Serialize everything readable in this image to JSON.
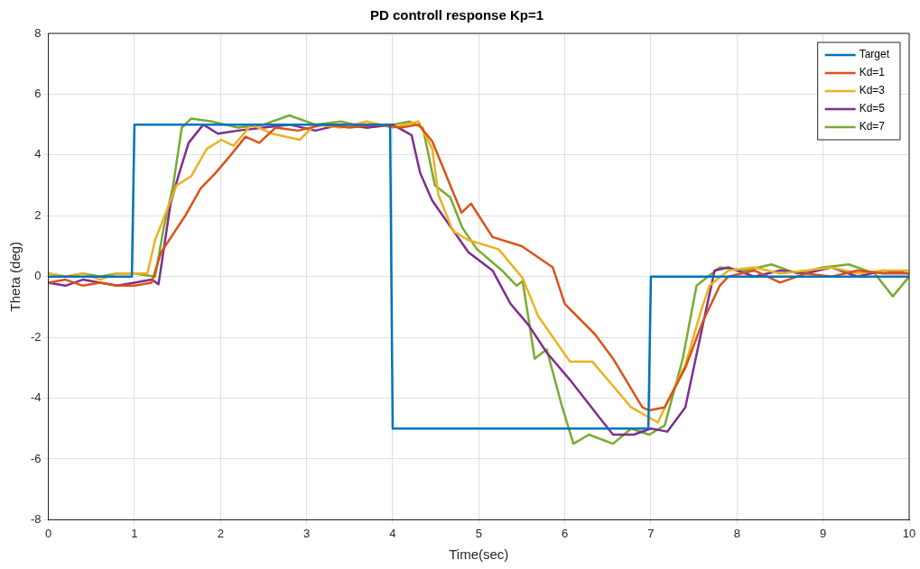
{
  "chart_data": {
    "type": "line",
    "title": "PD controll response Kp=1",
    "xlabel": "Time(sec)",
    "ylabel": "Theta (deg)",
    "xlim": [
      0,
      10
    ],
    "ylim": [
      -8,
      8
    ],
    "xticks": [
      0,
      1,
      2,
      3,
      4,
      5,
      6,
      7,
      8,
      9,
      10
    ],
    "yticks": [
      -8,
      -6,
      -4,
      -2,
      0,
      2,
      4,
      6,
      8
    ],
    "grid": true,
    "legend": "top right",
    "marker": "none",
    "line_style": "solid",
    "series": [
      {
        "name": "Target",
        "color": "#0072bd",
        "x": [
          0,
          0.97,
          1,
          3.97,
          4,
          6.97,
          7,
          10
        ],
        "values": [
          0,
          0,
          5,
          5,
          -5,
          -5,
          0,
          0
        ]
      },
      {
        "name": "Kd=1",
        "color": "#d95319",
        "x": [
          0,
          0.2,
          0.4,
          0.6,
          0.8,
          1.0,
          1.2,
          1.31,
          1.45,
          1.59,
          1.77,
          1.94,
          2.12,
          2.29,
          2.45,
          2.64,
          2.9,
          3.2,
          3.5,
          3.8,
          4.1,
          4.3,
          4.46,
          4.64,
          4.8,
          4.91,
          5.16,
          5.5,
          5.86,
          6.0,
          6.35,
          6.56,
          6.9,
          6.98,
          7.16,
          7.4,
          7.6,
          7.8,
          7.9,
          8.2,
          8.5,
          8.8,
          9.1,
          9.4,
          9.7,
          10
        ],
        "values": [
          -0.2,
          -0.1,
          -0.3,
          -0.2,
          -0.3,
          -0.3,
          -0.2,
          0.8,
          1.4,
          2.0,
          2.9,
          3.4,
          4.0,
          4.6,
          4.4,
          4.9,
          4.8,
          5.0,
          4.9,
          5.0,
          4.9,
          5.0,
          4.45,
          3.2,
          2.1,
          2.4,
          1.3,
          1.0,
          0.3,
          -0.9,
          -1.9,
          -2.7,
          -4.3,
          -4.4,
          -4.3,
          -3.0,
          -1.5,
          -0.3,
          0.0,
          0.2,
          -0.2,
          0.1,
          0.0,
          0.2,
          0.1,
          0.1
        ]
      },
      {
        "name": "Kd=3",
        "color": "#edb120",
        "x": [
          0,
          0.2,
          0.4,
          0.6,
          0.8,
          1.0,
          1.15,
          1.24,
          1.49,
          1.66,
          1.84,
          2.01,
          2.15,
          2.36,
          2.6,
          2.92,
          3.1,
          3.4,
          3.7,
          4.0,
          4.3,
          4.46,
          4.53,
          4.7,
          4.88,
          5.23,
          5.51,
          5.69,
          6.06,
          6.32,
          6.56,
          6.77,
          7.08,
          7.4,
          7.58,
          7.68,
          7.9,
          8.2,
          8.5,
          8.8,
          9.1,
          9.4,
          9.7,
          10
        ],
        "values": [
          0.1,
          0.0,
          0.1,
          -0.1,
          0.1,
          0.1,
          0.1,
          1.2,
          3.0,
          3.3,
          4.2,
          4.5,
          4.3,
          5.0,
          4.7,
          4.5,
          5.0,
          4.9,
          5.1,
          4.9,
          5.1,
          4.2,
          2.7,
          1.5,
          1.2,
          0.9,
          -0.05,
          -1.3,
          -2.8,
          -2.8,
          -3.6,
          -4.3,
          -4.8,
          -2.9,
          -1.15,
          -0.3,
          0.2,
          0.3,
          0.1,
          0.2,
          0.3,
          0.1,
          0.2,
          0.2
        ]
      },
      {
        "name": "Kd=5",
        "color": "#7e2f8e",
        "x": [
          0,
          0.2,
          0.4,
          0.6,
          0.8,
          1.0,
          1.2,
          1.28,
          1.42,
          1.52,
          1.63,
          1.8,
          1.97,
          2.2,
          2.5,
          2.8,
          3.1,
          3.4,
          3.7,
          4.0,
          4.22,
          4.32,
          4.46,
          4.88,
          5.16,
          5.37,
          5.58,
          5.79,
          6.06,
          6.42,
          6.56,
          6.8,
          7.0,
          7.19,
          7.4,
          7.61,
          7.74,
          7.9,
          8.2,
          8.5,
          8.8,
          9.1,
          9.4,
          9.7,
          10
        ],
        "values": [
          -0.2,
          -0.3,
          -0.1,
          -0.2,
          -0.3,
          -0.2,
          -0.1,
          -0.25,
          2.4,
          3.4,
          4.4,
          5.0,
          4.7,
          4.8,
          4.9,
          5.0,
          4.8,
          5.0,
          4.9,
          5.0,
          4.65,
          3.4,
          2.5,
          0.8,
          0.2,
          -0.9,
          -1.6,
          -2.5,
          -3.4,
          -4.7,
          -5.2,
          -5.2,
          -5.0,
          -5.1,
          -4.3,
          -1.5,
          0.2,
          0.3,
          0.0,
          0.2,
          0.1,
          0.3,
          0.0,
          0.2,
          0.1
        ]
      },
      {
        "name": "Kd=7",
        "color": "#77ac30",
        "x": [
          0,
          0.2,
          0.4,
          0.6,
          0.8,
          1.0,
          1.24,
          1.34,
          1.45,
          1.55,
          1.66,
          1.9,
          2.2,
          2.5,
          2.8,
          3.1,
          3.4,
          3.7,
          4.0,
          4.2,
          4.35,
          4.49,
          4.67,
          4.81,
          4.98,
          5.27,
          5.44,
          5.51,
          5.65,
          5.79,
          5.96,
          6.1,
          6.28,
          6.56,
          6.77,
          6.98,
          7.16,
          7.37,
          7.53,
          7.8,
          8.1,
          8.4,
          8.7,
          9.0,
          9.3,
          9.6,
          9.81,
          10
        ],
        "values": [
          0.1,
          0.0,
          0.1,
          0.0,
          0.1,
          0.1,
          0.0,
          1.6,
          3.0,
          4.9,
          5.2,
          5.1,
          4.9,
          5.0,
          5.3,
          5.0,
          5.1,
          4.9,
          5.0,
          5.1,
          4.9,
          3.0,
          2.6,
          1.6,
          0.9,
          0.2,
          -0.3,
          -0.15,
          -2.7,
          -2.4,
          -4.2,
          -5.5,
          -5.2,
          -5.5,
          -5.0,
          -5.2,
          -4.9,
          -2.7,
          -0.3,
          0.3,
          0.2,
          0.4,
          0.1,
          0.3,
          0.4,
          0.1,
          -0.65,
          0.0
        ]
      }
    ]
  }
}
